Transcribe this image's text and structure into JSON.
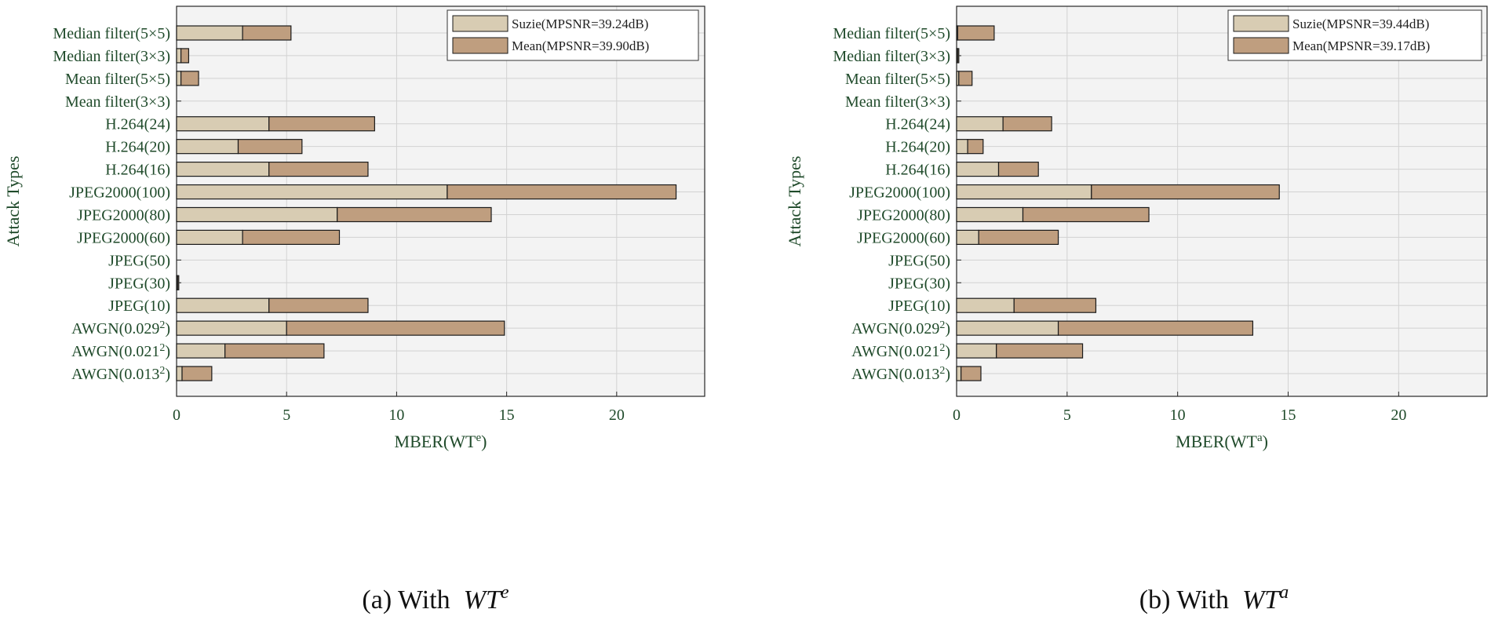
{
  "chart_data": [
    {
      "type": "bar",
      "stacked": true,
      "orientation": "horizontal",
      "caption": "(a) With",
      "caption_math": "WT",
      "caption_sup": "e",
      "xlabel": "MBER(WT",
      "xlabel_sup": "e",
      "xlabel_close": ")",
      "ylabel": "Attack Types",
      "xlim": [
        0,
        24
      ],
      "xticks": [
        0,
        5,
        10,
        15,
        20
      ],
      "grid": true,
      "legend_position": "top-right",
      "categories": [
        {
          "base": "Median filter(5×5)",
          "sup": ""
        },
        {
          "base": "Median filter(3×3)",
          "sup": ""
        },
        {
          "base": "Mean filter(5×5)",
          "sup": ""
        },
        {
          "base": "Mean filter(3×3)",
          "sup": ""
        },
        {
          "base": "H.264(24)",
          "sup": ""
        },
        {
          "base": "H.264(20)",
          "sup": ""
        },
        {
          "base": "H.264(16)",
          "sup": ""
        },
        {
          "base": "JPEG2000(100)",
          "sup": ""
        },
        {
          "base": "JPEG2000(80)",
          "sup": ""
        },
        {
          "base": "JPEG2000(60)",
          "sup": ""
        },
        {
          "base": "JPEG(50)",
          "sup": ""
        },
        {
          "base": "JPEG(30)",
          "sup": ""
        },
        {
          "base": "JPEG(10)",
          "sup": ""
        },
        {
          "base": "AWGN(0.029",
          "sup": "2"
        },
        {
          "base": "AWGN(0.021",
          "sup": "2"
        },
        {
          "base": "AWGN(0.013",
          "sup": "2"
        }
      ],
      "series": [
        {
          "name": "Suzie(MPSNR=39.24dB)",
          "color": "#d8ccb3",
          "values": [
            3.0,
            0.2,
            0.2,
            0,
            4.2,
            2.8,
            4.2,
            12.3,
            7.3,
            3.0,
            0,
            0.05,
            4.2,
            5.0,
            2.2,
            0.25
          ]
        },
        {
          "name": "Mean(MPSNR=39.90dB)",
          "color": "#bf9e7f",
          "values": [
            2.2,
            0.35,
            0.8,
            0,
            4.8,
            2.9,
            4.5,
            10.4,
            7.0,
            4.4,
            0,
            0.05,
            4.5,
            9.9,
            4.5,
            1.35
          ]
        }
      ]
    },
    {
      "type": "bar",
      "stacked": true,
      "orientation": "horizontal",
      "caption": "(b) With",
      "caption_math": "WT",
      "caption_sup": "a",
      "xlabel": "MBER(WT",
      "xlabel_sup": "a",
      "xlabel_close": ")",
      "ylabel": "Attack Types",
      "xlim": [
        0,
        24
      ],
      "xticks": [
        0,
        5,
        10,
        15,
        20
      ],
      "grid": true,
      "legend_position": "top-right",
      "categories": [
        {
          "base": "Median filter(5×5)",
          "sup": ""
        },
        {
          "base": "Median filter(3×3)",
          "sup": ""
        },
        {
          "base": "Mean filter(5×5)",
          "sup": ""
        },
        {
          "base": "Mean filter(3×3)",
          "sup": ""
        },
        {
          "base": "H.264(24)",
          "sup": ""
        },
        {
          "base": "H.264(20)",
          "sup": ""
        },
        {
          "base": "H.264(16)",
          "sup": ""
        },
        {
          "base": "JPEG2000(100)",
          "sup": ""
        },
        {
          "base": "JPEG2000(80)",
          "sup": ""
        },
        {
          "base": "JPEG2000(60)",
          "sup": ""
        },
        {
          "base": "JPEG(50)",
          "sup": ""
        },
        {
          "base": "JPEG(30)",
          "sup": ""
        },
        {
          "base": "JPEG(10)",
          "sup": ""
        },
        {
          "base": "AWGN(0.029",
          "sup": "2"
        },
        {
          "base": "AWGN(0.021",
          "sup": "2"
        },
        {
          "base": "AWGN(0.013",
          "sup": "2"
        }
      ],
      "series": [
        {
          "name": "Suzie(MPSNR=39.44dB)",
          "color": "#d8ccb3",
          "values": [
            0.05,
            0.05,
            0.1,
            0,
            2.1,
            0.5,
            1.9,
            6.1,
            3.0,
            1.0,
            0,
            0,
            2.6,
            4.6,
            1.8,
            0.2
          ]
        },
        {
          "name": "Mean(MPSNR=39.17dB)",
          "color": "#bf9e7f",
          "values": [
            1.65,
            0.05,
            0.6,
            0,
            2.2,
            0.7,
            1.8,
            8.5,
            5.7,
            3.6,
            0,
            0,
            3.7,
            8.8,
            3.9,
            0.9
          ]
        }
      ]
    }
  ]
}
